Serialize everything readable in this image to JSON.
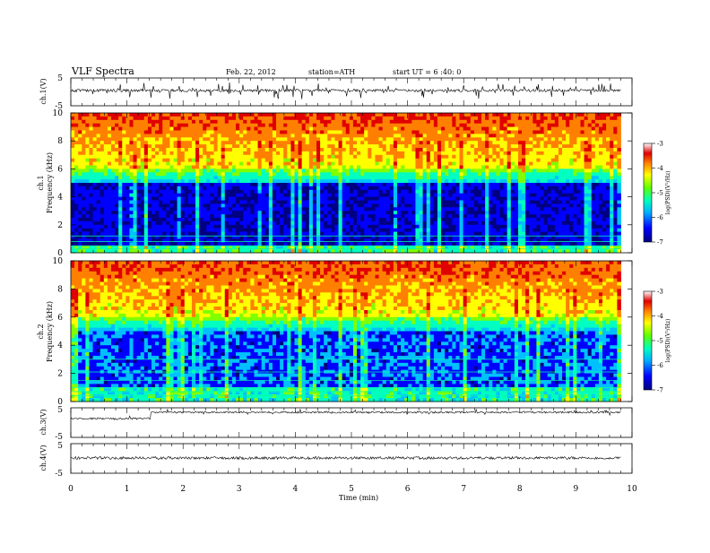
{
  "header": {
    "title": "VLF  Spectra",
    "date": "Feb. 22, 2012",
    "station": "station=ATH",
    "start": "start  UT  =   6 :40: 0"
  },
  "colors": {
    "cmap": [
      "#000080",
      "#0000ff",
      "#00c0ff",
      "#00ffc0",
      "#80ff00",
      "#ffff00",
      "#ff8000",
      "#e00000",
      "#ffffff"
    ],
    "trace": "#000000"
  },
  "chart_data": {
    "type": "heatmap",
    "xlabel": "Time  (min)",
    "xlim": [
      0,
      10
    ],
    "x_ticks": [
      "0",
      "1",
      "2",
      "3",
      "4",
      "5",
      "6",
      "7",
      "8",
      "9",
      "10"
    ],
    "time_series_panels": [
      {
        "id": "ch1_wave",
        "ylabel": "ch.1(V)",
        "ylim": [
          -5,
          5
        ],
        "y_ticks": [
          "5",
          "-5"
        ]
      },
      {
        "id": "ch3_wave",
        "ylabel": "ch.3(V)",
        "ylim": [
          -5,
          5
        ],
        "y_ticks": [
          "5",
          "-5"
        ]
      },
      {
        "id": "ch4_wave",
        "ylabel": "ch.4(V)",
        "ylim": [
          -5,
          5
        ],
        "y_ticks": [
          "5",
          "-5"
        ]
      }
    ],
    "spectrogram_panels": [
      {
        "id": "ch1_spec",
        "ylabel_line1": "ch.1",
        "ylabel_line2": "Frequency  (kHz)",
        "ylim": [
          0,
          10
        ],
        "y_ticks": [
          "0",
          "2",
          "4",
          "6",
          "8",
          "10"
        ]
      },
      {
        "id": "ch2_spec",
        "ylabel_line1": "ch.2",
        "ylabel_line2": "Frequency  (kHz)",
        "ylim": [
          0,
          10
        ],
        "y_ticks": [
          "0",
          "2",
          "4",
          "6",
          "8",
          "10"
        ]
      }
    ],
    "colorbar": {
      "label": "log(PSD)(V²/Hz)",
      "range": [
        -7,
        -3
      ],
      "ticks": [
        "-3",
        "-4",
        "-5",
        "-6",
        "-7"
      ]
    },
    "data_time_range_min": [
      0,
      9.8
    ]
  }
}
